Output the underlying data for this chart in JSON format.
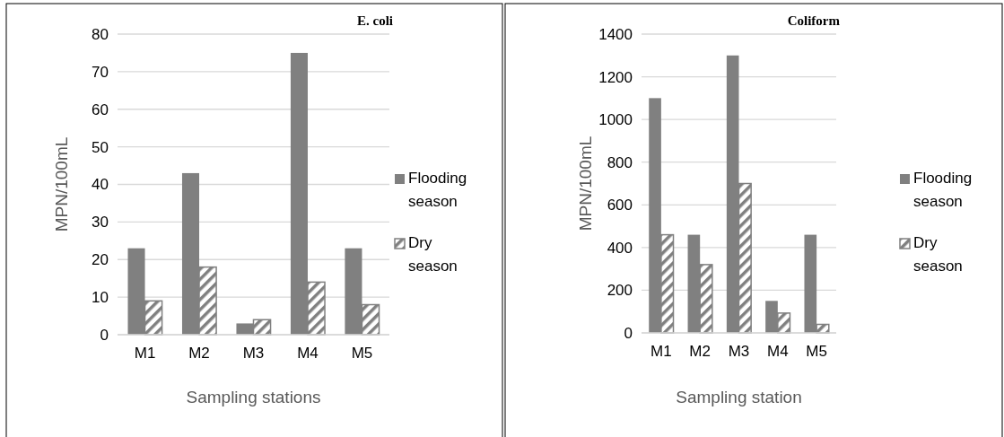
{
  "chart_data": [
    {
      "type": "bar",
      "title": "E. coli",
      "xlabel": "Sampling stations",
      "ylabel": "MPN/100mL",
      "categories": [
        "M1",
        "M2",
        "M3",
        "M4",
        "M5"
      ],
      "series": [
        {
          "name": "Flooding season",
          "color": "#808080",
          "values": [
            23,
            43,
            3,
            75,
            23
          ]
        },
        {
          "name": "Dry season",
          "color": "#808080",
          "values": [
            9,
            18,
            4,
            14,
            8
          ]
        }
      ],
      "ylim": [
        0,
        80
      ],
      "yticks": [
        0,
        10,
        20,
        30,
        40,
        50,
        60,
        70,
        80
      ],
      "grid": "y",
      "legend": "right"
    },
    {
      "type": "bar",
      "title": "Coliform",
      "xlabel": "Sampling station",
      "ylabel": "MPN/100mL",
      "categories": [
        "M1",
        "M2",
        "M3",
        "M4",
        "M5"
      ],
      "series": [
        {
          "name": "Flooding season",
          "color": "#808080",
          "values": [
            1100,
            460,
            1300,
            150,
            460
          ]
        },
        {
          "name": "Dry season",
          "color": "#808080",
          "values": [
            460,
            320,
            700,
            93,
            40
          ]
        }
      ],
      "ylim": [
        0,
        1400
      ],
      "yticks": [
        0,
        200,
        400,
        600,
        800,
        1000,
        1200,
        1400
      ],
      "grid": "y",
      "legend": "right"
    }
  ]
}
